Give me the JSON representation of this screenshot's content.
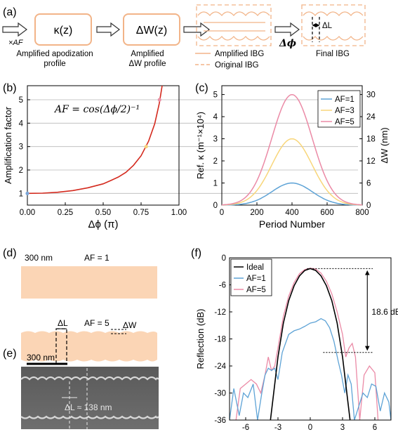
{
  "panel_labels": {
    "a": "(a)",
    "b": "(b)",
    "c": "(c)",
    "d": "(d)",
    "e": "(e)",
    "f": "(f)"
  },
  "panel_a": {
    "af_label": "×AF",
    "box1": "κ(z)",
    "box2": "ΔW(z)",
    "caption1a": "Amplified apodization",
    "caption1b": "profile",
    "caption2a": "Amplified",
    "caption2b": "ΔW profile",
    "legend_amplified": "Amplified IBG",
    "legend_original": "Original IBG",
    "dphi": "Δϕ",
    "dl": "ΔL",
    "final": "Final IBG",
    "colors": {
      "box": "#f2b488",
      "wave": "#f2b488",
      "arrow": "#333333"
    }
  },
  "panel_d": {
    "scale": "300 nm",
    "af1": "AF = 1",
    "af5": "AF = 5",
    "dl": "ΔL",
    "dw": "ΔW",
    "fill": "#fbd5b5"
  },
  "panel_e": {
    "scale": "300 nm",
    "dl_text": "ΔL ≈ 138 nm"
  },
  "chart_data": [
    {
      "id": "b",
      "type": "line",
      "xlabel": "Δϕ (π)",
      "ylabel": "Amplification factor",
      "xlim": [
        0,
        1
      ],
      "ylim": [
        0.5,
        5.6
      ],
      "xticks": [
        "0.00",
        "0.25",
        "0.50",
        "0.75",
        "1.00"
      ],
      "yticks": [
        "1",
        "2",
        "3",
        "4",
        "5"
      ],
      "formula": "AF = cos(Δϕ/2)⁻¹",
      "series": [
        {
          "color": "#d42a1e",
          "x": [
            0,
            0.1,
            0.2,
            0.3,
            0.4,
            0.5,
            0.55,
            0.6,
            0.65,
            0.7,
            0.75,
            0.8,
            0.84,
            0.87,
            0.89,
            0.905
          ],
          "y": [
            1.0,
            1.01,
            1.05,
            1.12,
            1.24,
            1.41,
            1.55,
            1.7,
            1.9,
            2.2,
            2.61,
            3.24,
            3.97,
            4.84,
            5.64,
            6.3
          ]
        }
      ],
      "markers": [
        {
          "x": 0,
          "y": 1,
          "color": "#7aa6d8"
        },
        {
          "x": 0.7836,
          "y": 3,
          "color": "#f6d27a"
        },
        {
          "x": 0.8718,
          "y": 5,
          "color": "#e98fa6"
        }
      ]
    },
    {
      "id": "c",
      "type": "line",
      "xlabel": "Period Number",
      "ylabel": "Ref. κ (m⁻¹×10⁴)",
      "ylabel_right": "ΔW (nm)",
      "xlim": [
        0,
        800
      ],
      "ylim": [
        0,
        5.4
      ],
      "xticks": [
        "0",
        "200",
        "400",
        "600",
        "800"
      ],
      "yticks": [
        "0",
        "1",
        "2",
        "3",
        "4",
        "5"
      ],
      "yticks_right": [
        "0",
        "6",
        "12",
        "18",
        "24",
        "30"
      ],
      "series": [
        {
          "name": "AF=1",
          "color": "#5ea3d6",
          "peak": 1,
          "center": 400,
          "sigma": 115
        },
        {
          "name": "AF=3",
          "color": "#f8d67a",
          "peak": 3,
          "center": 400,
          "sigma": 115
        },
        {
          "name": "AF=5",
          "color": "#eb8aa6",
          "peak": 5,
          "center": 400,
          "sigma": 115
        }
      ]
    },
    {
      "id": "f",
      "type": "line",
      "xlabel": "Δλ (nm)",
      "ylabel": "Reflection (dB)",
      "xlim": [
        -7.5,
        7.5
      ],
      "ylim": [
        -36,
        0
      ],
      "xticks": [
        "-6",
        "-3",
        "0",
        "3",
        "6"
      ],
      "yticks": [
        "0",
        "-6",
        "-12",
        "-18",
        "-24",
        "-30",
        "-36"
      ],
      "annotation": "18.6 dB",
      "series": [
        {
          "name": "Ideal",
          "color": "#000000",
          "x": [
            -3.7,
            -3.4,
            -3.0,
            -2.5,
            -2.0,
            -1.5,
            -1.0,
            -0.5,
            0,
            0.5,
            1.0,
            1.5,
            2.0,
            2.5,
            3.0,
            3.4,
            3.7
          ],
          "y": [
            -36,
            -30,
            -22,
            -14.5,
            -9.5,
            -6.2,
            -4.0,
            -2.8,
            -2.4,
            -2.8,
            -4.0,
            -6.2,
            -9.5,
            -14.5,
            -22,
            -30,
            -36
          ]
        },
        {
          "name": "AF=1",
          "color": "#5ea3d6",
          "x": [
            -7.5,
            -7.1,
            -6.6,
            -6.2,
            -5.8,
            -5.3,
            -4.9,
            -4.5,
            -4.2,
            -3.9,
            -3.6,
            -3.3,
            -3.0,
            -2.6,
            -2.0,
            -1.5,
            -1.0,
            -0.5,
            0,
            0.5,
            1.0,
            1.4,
            1.8,
            2.2,
            2.6,
            2.9,
            3.2,
            3.5,
            3.8,
            4.1,
            4.5,
            4.9,
            5.3,
            5.7,
            6.1,
            6.5,
            6.9,
            7.3,
            7.5
          ],
          "y": [
            -36,
            -29,
            -35,
            -30,
            -31,
            -28,
            -36,
            -30,
            -26,
            -24.5,
            -25,
            -24.5,
            -27,
            -21,
            -17,
            -16.2,
            -15.8,
            -15.2,
            -14.5,
            -14.2,
            -13.5,
            -14,
            -15.5,
            -18.5,
            -23,
            -26,
            -30,
            -26,
            -28,
            -36,
            -33,
            -30,
            -31,
            -28,
            -28.5,
            -34,
            -30,
            -32,
            -36
          ]
        },
        {
          "name": "AF=5",
          "color": "#eb8aa6",
          "x": [
            -6.9,
            -6.5,
            -6.0,
            -5.5,
            -5.0,
            -4.6,
            -4.2,
            -3.9,
            -3.6,
            -3.3,
            -3.0,
            -2.5,
            -2.0,
            -1.5,
            -1.0,
            -0.5,
            0,
            0.5,
            1.0,
            1.5,
            2.0,
            2.5,
            3.0,
            3.3,
            3.6,
            3.9,
            4.2,
            4.6,
            5.0,
            5.5,
            6.0,
            6.3
          ],
          "y": [
            -36,
            -29,
            -28,
            -27,
            -28,
            -30,
            -26,
            -22,
            -25,
            -24,
            -20,
            -13,
            -8.5,
            -5.5,
            -3.5,
            -2.6,
            -2.3,
            -2.5,
            -3.4,
            -5.2,
            -8,
            -12,
            -17,
            -22,
            -20,
            -19,
            -22,
            -36,
            -26,
            -24,
            -25.5,
            -36
          ]
        }
      ]
    }
  ]
}
